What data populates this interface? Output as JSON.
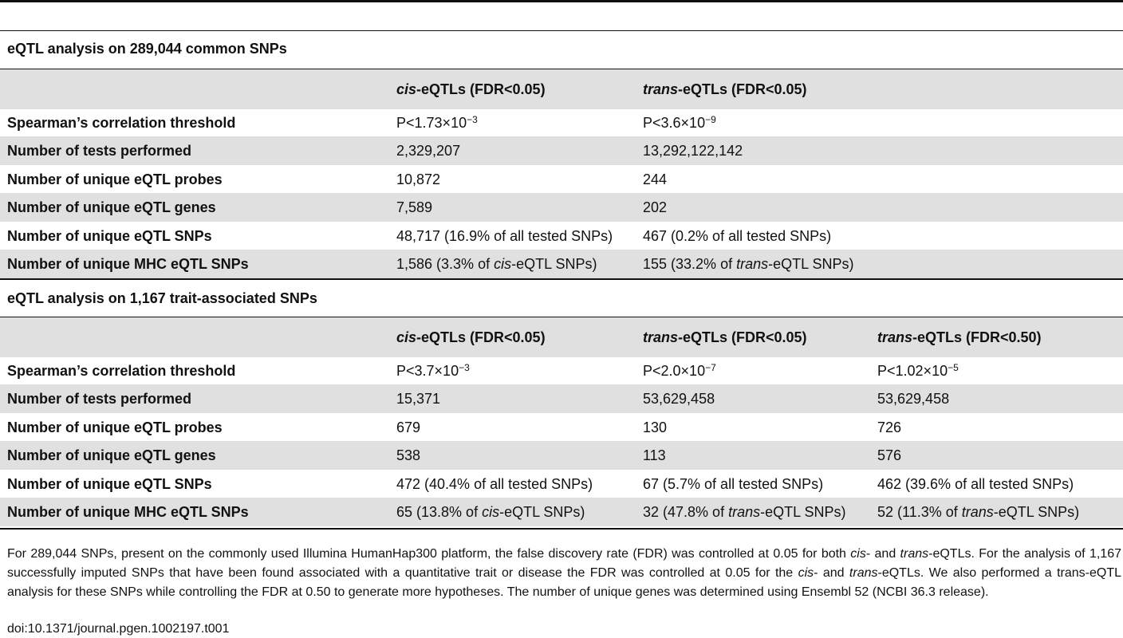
{
  "section1": {
    "title": "eQTL analysis on 289,044 common SNPs",
    "headers": [
      {
        "pre": "cis",
        "post": "-eQTLs (FDR<0.05)"
      },
      {
        "pre": "trans",
        "post": "-eQTLs (FDR<0.05)"
      }
    ],
    "rows": [
      {
        "label": "Spearman’s correlation threshold",
        "cells": [
          {
            "main": "P<1.73×10",
            "sup": "−3"
          },
          {
            "main": "P<3.6×10",
            "sup": "−9"
          }
        ]
      },
      {
        "label": "Number of tests performed",
        "cells": [
          {
            "main": "2,329,207"
          },
          {
            "main": "13,292,122,142"
          }
        ]
      },
      {
        "label": "Number of unique eQTL probes",
        "cells": [
          {
            "main": "10,872"
          },
          {
            "main": "244"
          }
        ]
      },
      {
        "label": "Number of unique eQTL genes",
        "cells": [
          {
            "main": "7,589"
          },
          {
            "main": "202"
          }
        ]
      },
      {
        "label": "Number of unique eQTL SNPs",
        "cells": [
          {
            "main": "48,717 (16.9% of all tested SNPs)"
          },
          {
            "main": "467 (0.2% of all tested SNPs)"
          }
        ]
      },
      {
        "label": "Number of unique MHC eQTL SNPs",
        "cells": [
          {
            "a": "1,586 (3.3% of ",
            "i": "cis",
            "b": "-eQTL SNPs)"
          },
          {
            "a": "155 (33.2% of ",
            "i": "trans",
            "b": "-eQTL SNPs)"
          }
        ]
      }
    ]
  },
  "section2": {
    "title": "eQTL analysis on 1,167 trait-associated SNPs",
    "headers": [
      {
        "pre": "cis",
        "post": "-eQTLs (FDR<0.05)"
      },
      {
        "pre": "trans",
        "post": "-eQTLs (FDR<0.05)"
      },
      {
        "pre": "trans",
        "post": "-eQTLs (FDR<0.50)"
      }
    ],
    "rows": [
      {
        "label": "Spearman’s correlation threshold",
        "cells": [
          {
            "main": "P<3.7×10",
            "sup": "−3"
          },
          {
            "main": "P<2.0×10",
            "sup": "−7"
          },
          {
            "main": "P<1.02×10",
            "sup": "−5"
          }
        ]
      },
      {
        "label": "Number of tests performed",
        "cells": [
          {
            "main": "15,371"
          },
          {
            "main": "53,629,458"
          },
          {
            "main": "53,629,458"
          }
        ]
      },
      {
        "label": "Number of unique eQTL probes",
        "cells": [
          {
            "main": "679"
          },
          {
            "main": "130"
          },
          {
            "main": "726"
          }
        ]
      },
      {
        "label": "Number of unique eQTL genes",
        "cells": [
          {
            "main": "538"
          },
          {
            "main": "113"
          },
          {
            "main": "576"
          }
        ]
      },
      {
        "label": "Number of unique eQTL SNPs",
        "cells": [
          {
            "main": "472 (40.4% of all tested SNPs)"
          },
          {
            "main": "67 (5.7% of all tested SNPs)"
          },
          {
            "main": "462 (39.6% of all tested SNPs)"
          }
        ]
      },
      {
        "label": "Number of unique MHC eQTL SNPs",
        "cells": [
          {
            "a": "65 (13.8% of ",
            "i": "cis",
            "b": "-eQTL SNPs)"
          },
          {
            "a": "32 (47.8% of ",
            "i": "trans",
            "b": "-eQTL SNPs)"
          },
          {
            "a": "52 (11.3% of ",
            "i": "trans",
            "b": "-eQTL SNPs)"
          }
        ]
      }
    ]
  },
  "footnote": {
    "p1": "For 289,044 SNPs, present on the commonly used Illumina HumanHap300 platform, the false discovery rate (FDR) was controlled at 0.05 for both ",
    "i1": "cis",
    "p2": "- and ",
    "i2": "trans",
    "p3": "-eQTLs. For the analysis of 1,167 successfully imputed SNPs that have been found associated with a quantitative trait or disease the FDR was controlled at 0.05 for the ",
    "i3": "cis",
    "p4": "- and ",
    "i4": "trans",
    "p5": "-eQTLs. We also performed a trans-eQTL analysis for these SNPs while controlling the FDR at 0.50 to generate more hypotheses. The number of unique genes was determined using Ensembl 52 (NCBI 36.3 release).",
    "doi": "doi:10.1371/journal.pgen.1002197.t001"
  }
}
